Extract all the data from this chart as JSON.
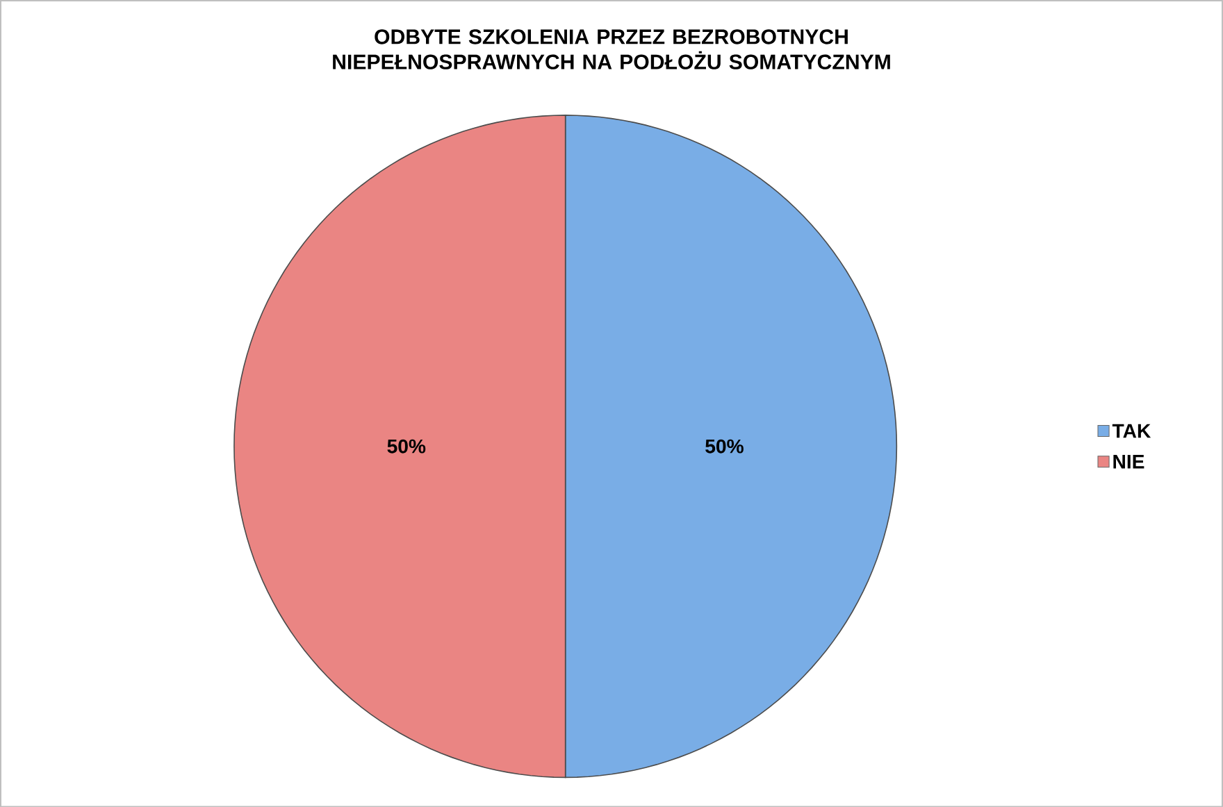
{
  "chart_data": {
    "type": "pie",
    "title": "ODBYTE SZKOLENIA PRZEZ BEZROBOTNYCH NIEPEŁNOSPRAWNYCH NA PODŁOŻU SOMATYCZNYM",
    "categories": [
      "TAK",
      "NIE"
    ],
    "values": [
      50,
      50
    ],
    "colors": [
      "#79ade6",
      "#ea8583"
    ],
    "value_labels": [
      "50%",
      "50%"
    ],
    "legend": "right"
  }
}
